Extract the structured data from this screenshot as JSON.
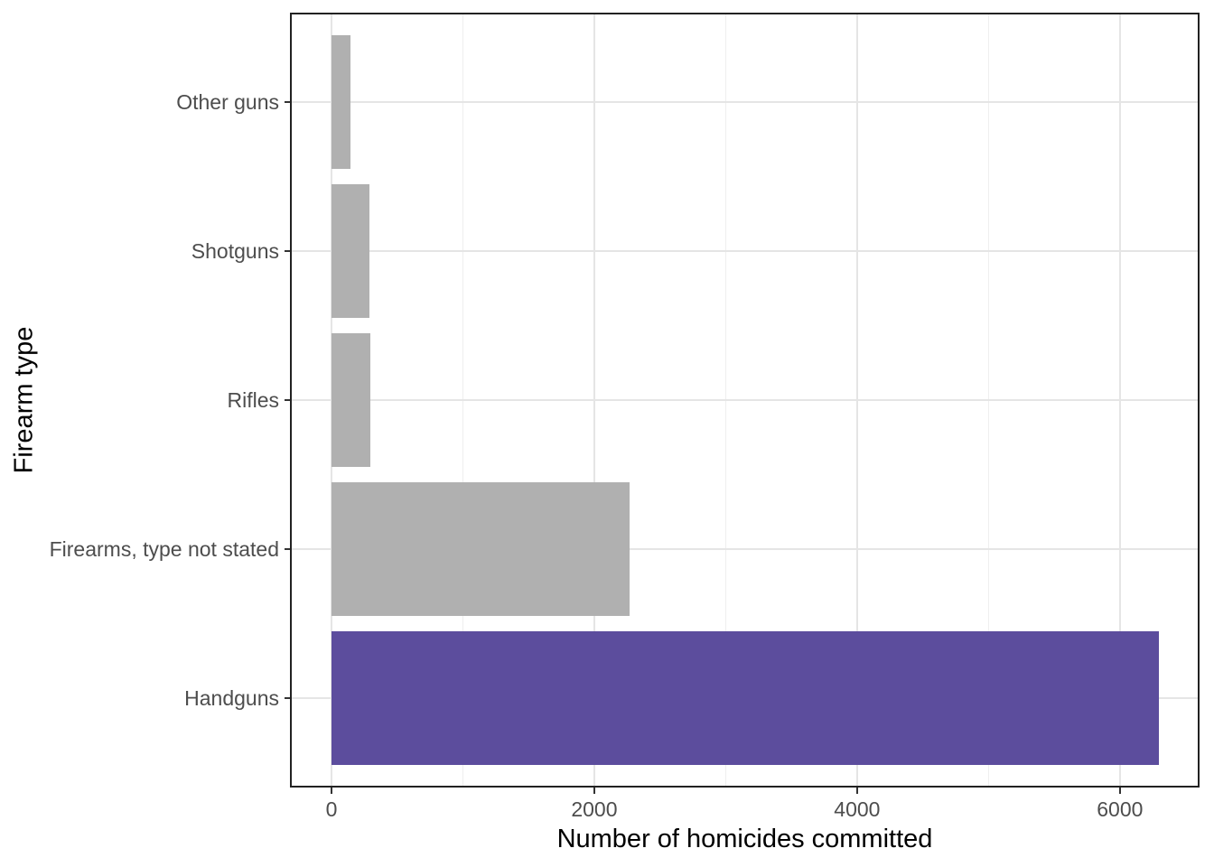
{
  "chart_data": {
    "type": "bar",
    "orientation": "horizontal",
    "xlabel": "Number of homicides committed",
    "ylabel": "Firearm type",
    "categories_top_to_bottom": [
      "Other guns",
      "Shotguns",
      "Rifles",
      "Firearms, type not stated",
      "Handguns"
    ],
    "values_top_to_bottom": [
      145,
      290,
      295,
      2270,
      6300
    ],
    "bar_colors_top_to_bottom": [
      "#b0b0b0",
      "#b0b0b0",
      "#b0b0b0",
      "#b0b0b0",
      "#5c4d9d"
    ],
    "highlight_category": "Handguns",
    "highlight_color": "#5c4d9d",
    "default_bar_color": "#b0b0b0",
    "x_ticks": [
      0,
      2000,
      4000,
      6000
    ],
    "x_tick_labels": [
      "0",
      "2000",
      "4000",
      "6000"
    ],
    "x_minor_gridlines": [
      1000,
      3000,
      5000
    ],
    "xlim": [
      -316,
      6606
    ],
    "grid": "major-x, minor-x, major-y; light gray on white",
    "legend": "none",
    "panel_border": true
  }
}
